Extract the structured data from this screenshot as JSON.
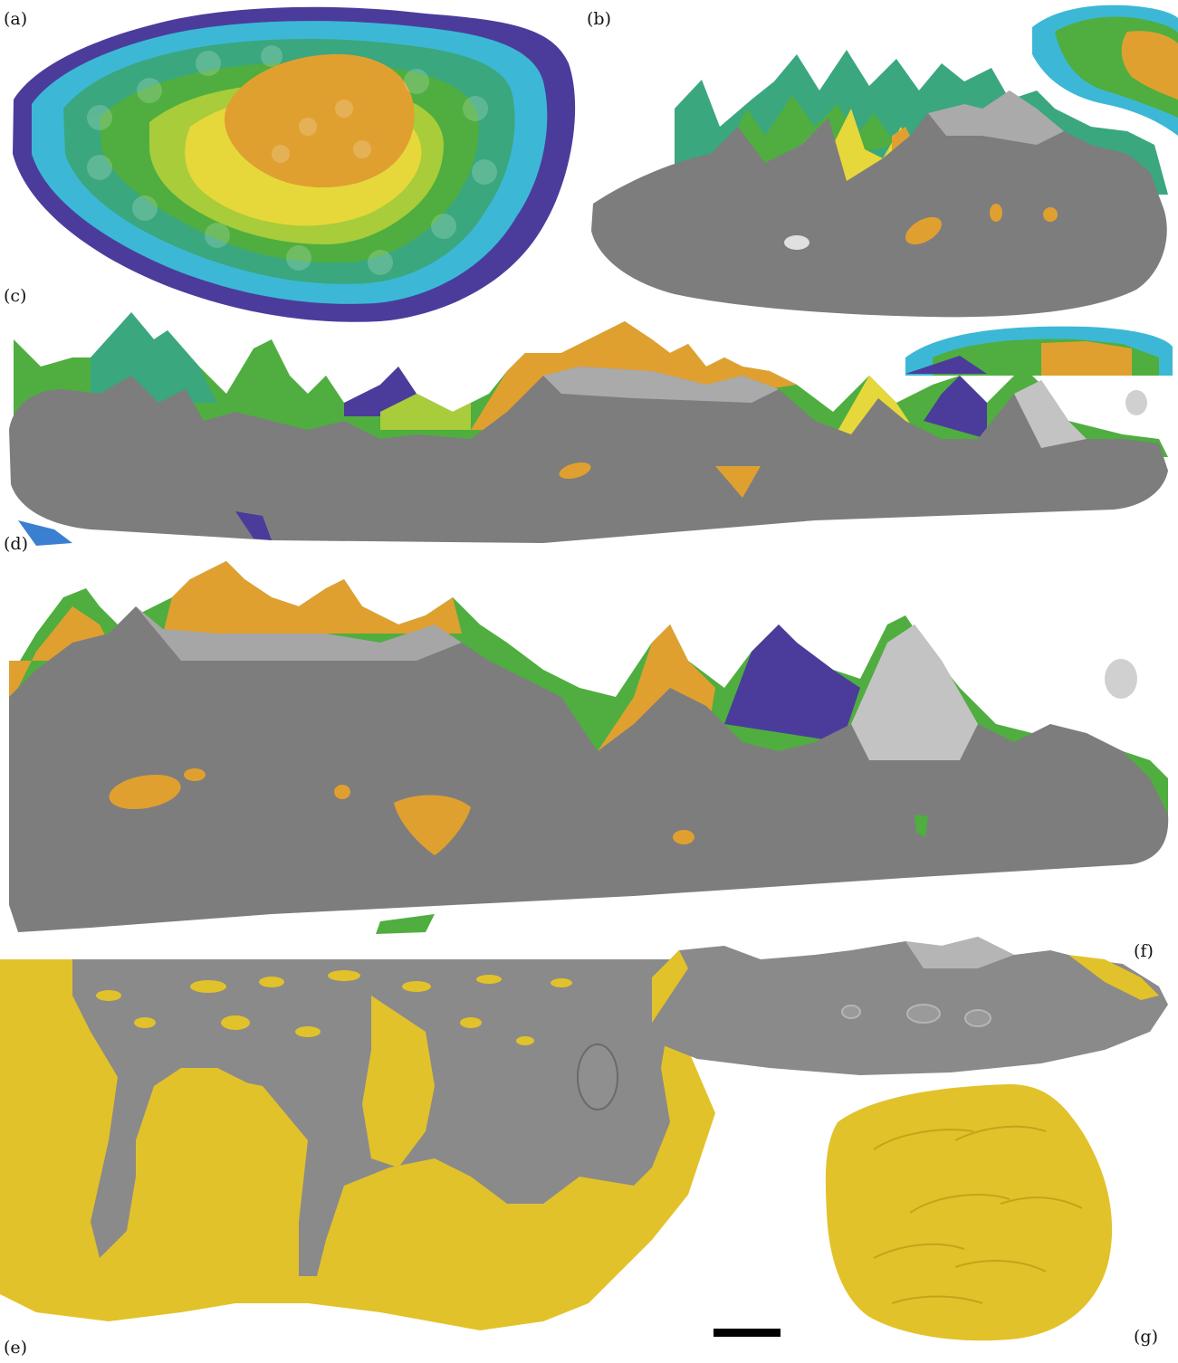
{
  "figure": {
    "panels": [
      {
        "id": "a",
        "label": "(a)"
      },
      {
        "id": "b",
        "label": "(b)"
      },
      {
        "id": "c",
        "label": "(c)"
      },
      {
        "id": "d",
        "label": "(d)"
      },
      {
        "id": "e",
        "label": "(e)"
      },
      {
        "id": "f",
        "label": "(f)"
      },
      {
        "id": "g",
        "label": "(g)"
      }
    ]
  },
  "colors": {
    "orange": "#e0a030",
    "yellow": "#e6d83a",
    "lime": "#a8cc3a",
    "green": "#4fae3f",
    "teal": "#3aa77e",
    "cyan": "#3cb8d6",
    "blue": "#3b7fd0",
    "purple": "#4b3c9c",
    "bone": "#7d7d7d",
    "bone_light": "#c8c8c8",
    "gold": "#e2c22a"
  }
}
